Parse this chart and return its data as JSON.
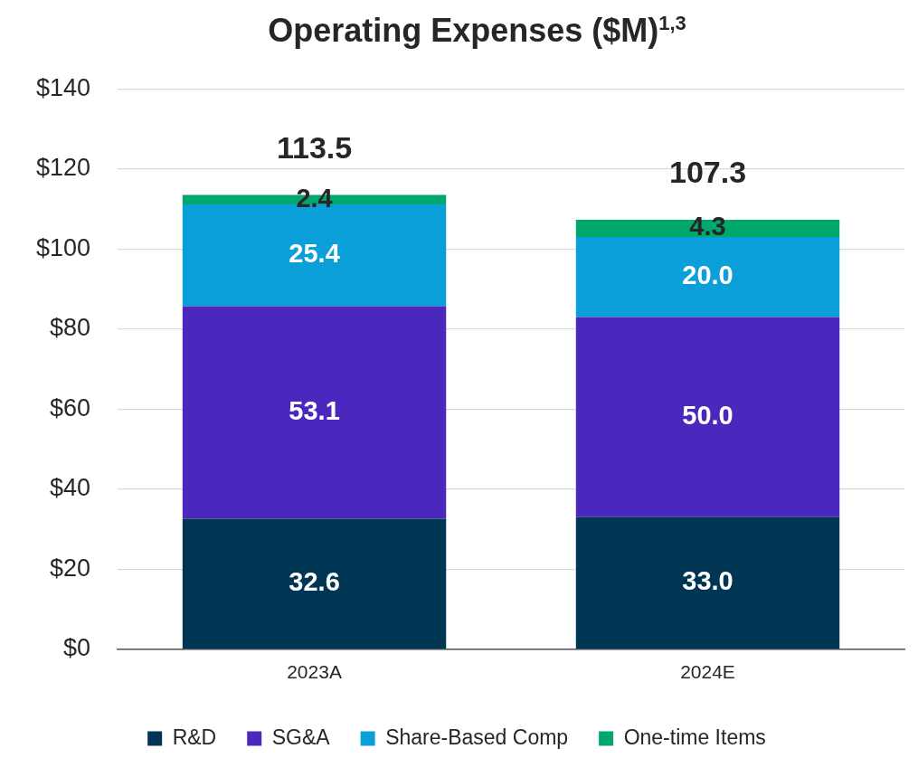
{
  "chart_data": {
    "type": "bar",
    "title": "Operating Expenses ($M)$^{1,3}$",
    "categories": [
      "2023A",
      "2024E"
    ],
    "stacked": true,
    "series": [
      {
        "name": "R&D",
        "color": "#003553",
        "values": [
          32.6,
          33.0
        ],
        "value_labels": [
          "32.6",
          "33.0"
        ]
      },
      {
        "name": "SG&A",
        "color": "#4b28bd",
        "values": [
          53.1,
          50.0
        ],
        "value_labels": [
          "53.1",
          "50.0"
        ]
      },
      {
        "name": "Share-Based Comp",
        "color": "#0a9fd8",
        "values": [
          25.4,
          20.0
        ],
        "value_labels": [
          "25.4",
          "20.0"
        ]
      },
      {
        "name": "One-time Items",
        "color": "#00a86b",
        "values": [
          2.4,
          4.3
        ],
        "value_labels": [
          "2.4",
          "4.3"
        ]
      }
    ],
    "ylim": [
      0,
      140
    ],
    "yticks": [
      {
        "value": 0,
        "label": "$0"
      },
      {
        "value": 20,
        "label": "$20"
      },
      {
        "value": 40,
        "label": "$40"
      },
      {
        "value": 60,
        "label": "$60"
      },
      {
        "value": 80,
        "label": "$80"
      },
      {
        "value": 100,
        "label": "$100"
      },
      {
        "value": 120,
        "label": "$120"
      },
      {
        "value": 140,
        "label": "$140"
      }
    ],
    "totals": [
      "113.5",
      "107.3"
    ],
    "grid": "y",
    "legend": "bottom"
  }
}
